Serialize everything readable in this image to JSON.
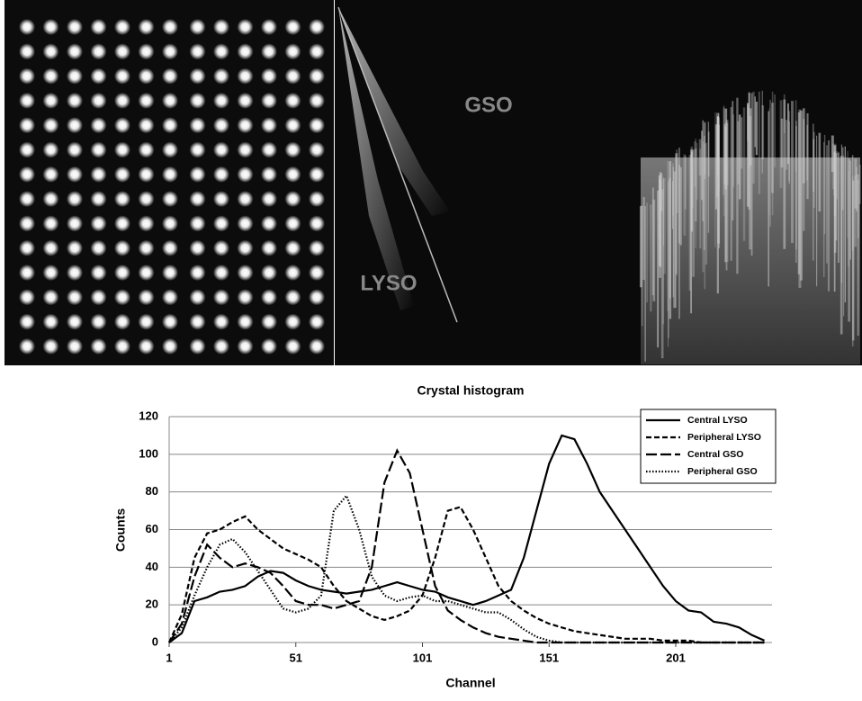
{
  "image_labels": [
    "GSO",
    "LYSO"
  ],
  "chart_data": {
    "type": "line",
    "title": "Crystal histogram",
    "x_label": "Channel",
    "y_label": "Counts",
    "x": [
      1,
      6,
      11,
      16,
      21,
      26,
      31,
      36,
      41,
      46,
      51,
      56,
      61,
      66,
      71,
      76,
      81,
      86,
      91,
      96,
      101,
      106,
      111,
      116,
      121,
      126,
      131,
      136,
      141,
      146,
      151,
      156,
      161,
      166,
      171,
      176,
      181,
      186,
      191,
      196,
      201,
      206,
      211,
      216,
      221,
      226,
      231,
      236
    ],
    "xlim": [
      1,
      239
    ],
    "xticks": [
      1,
      51,
      101,
      151,
      201
    ],
    "ylim": [
      0,
      120
    ],
    "yticks": [
      0,
      20,
      40,
      60,
      80,
      100,
      120
    ],
    "grid": true,
    "legend": "top-right",
    "series": [
      {
        "name": "Central LYSO",
        "color": "#000000",
        "dash": "solid",
        "values": [
          0,
          5,
          22,
          24,
          27,
          28,
          30,
          35,
          38,
          37,
          33,
          30,
          28,
          27,
          26,
          27,
          28,
          30,
          32,
          30,
          28,
          27,
          24,
          22,
          20,
          22,
          25,
          28,
          45,
          70,
          95,
          110,
          108,
          95,
          80,
          70,
          60,
          50,
          40,
          30,
          22,
          17,
          16,
          11,
          10,
          8,
          4,
          1
        ]
      },
      {
        "name": "Peripheral LYSO",
        "color": "#000000",
        "dash": "short",
        "values": [
          0,
          15,
          45,
          58,
          60,
          64,
          67,
          60,
          55,
          50,
          47,
          44,
          40,
          30,
          22,
          18,
          14,
          12,
          14,
          17,
          25,
          45,
          70,
          72,
          60,
          45,
          30,
          22,
          17,
          13,
          10,
          8,
          6,
          5,
          4,
          3,
          2,
          2,
          2,
          1,
          1,
          1,
          0,
          0,
          0,
          0,
          0,
          0
        ]
      },
      {
        "name": "Central GSO",
        "color": "#000000",
        "dash": "long",
        "values": [
          0,
          10,
          35,
          52,
          45,
          40,
          42,
          40,
          37,
          30,
          22,
          20,
          20,
          18,
          20,
          22,
          40,
          85,
          102,
          90,
          60,
          30,
          17,
          12,
          8,
          5,
          3,
          2,
          1,
          0,
          0,
          0,
          0,
          0,
          0,
          0,
          0,
          0,
          0,
          0,
          0,
          0,
          0,
          0,
          0,
          0,
          0,
          0
        ]
      },
      {
        "name": "Peripheral GSO",
        "color": "#000000",
        "dash": "dotted",
        "values": [
          0,
          8,
          25,
          40,
          52,
          55,
          48,
          38,
          28,
          18,
          16,
          18,
          25,
          70,
          78,
          60,
          35,
          25,
          22,
          24,
          25,
          22,
          22,
          20,
          18,
          16,
          16,
          12,
          7,
          3,
          1,
          0,
          0,
          0,
          0,
          0,
          0,
          0,
          0,
          0,
          0,
          0,
          0,
          0,
          0,
          0,
          0,
          0
        ]
      }
    ]
  }
}
